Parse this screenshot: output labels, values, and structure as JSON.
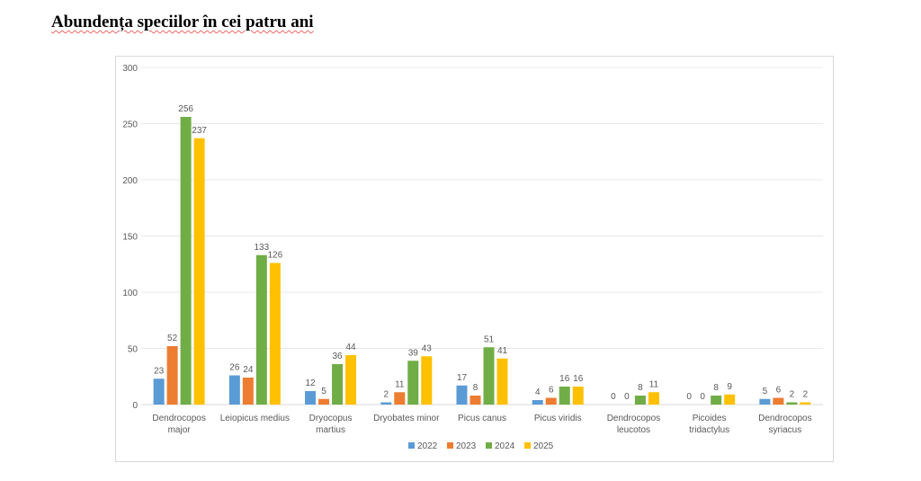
{
  "chart_data": {
    "type": "bar",
    "title": "Abundența speciilor în cei patru ani",
    "categories": [
      [
        "Dendrocopos",
        "major"
      ],
      [
        "Leiopicus medius"
      ],
      [
        "Dryocopus",
        "martius"
      ],
      [
        "Dryobates minor"
      ],
      [
        "Picus canus"
      ],
      [
        "Picus viridis"
      ],
      [
        "Dendrocopos",
        "leucotos"
      ],
      [
        "Picoides",
        "tridactylus"
      ],
      [
        "Dendrocopos",
        "syriacus"
      ]
    ],
    "series": [
      {
        "name": "2022",
        "color": "#5b9bd5",
        "values": [
          23,
          26,
          12,
          2,
          17,
          4,
          0,
          0,
          5
        ]
      },
      {
        "name": "2023",
        "color": "#ed7d31",
        "values": [
          52,
          24,
          5,
          11,
          8,
          6,
          0,
          0,
          6
        ]
      },
      {
        "name": "2024",
        "color": "#70ad47",
        "values": [
          256,
          133,
          36,
          39,
          51,
          16,
          8,
          8,
          2
        ]
      },
      {
        "name": "2025",
        "color": "#ffc000",
        "values": [
          237,
          126,
          44,
          43,
          41,
          16,
          11,
          9,
          2
        ]
      }
    ],
    "ylim": [
      0,
      300
    ],
    "yticks": [
      0,
      50,
      100,
      150,
      200,
      250,
      300
    ],
    "grid": true,
    "legend": "bottom",
    "xlabel": "",
    "ylabel": ""
  }
}
